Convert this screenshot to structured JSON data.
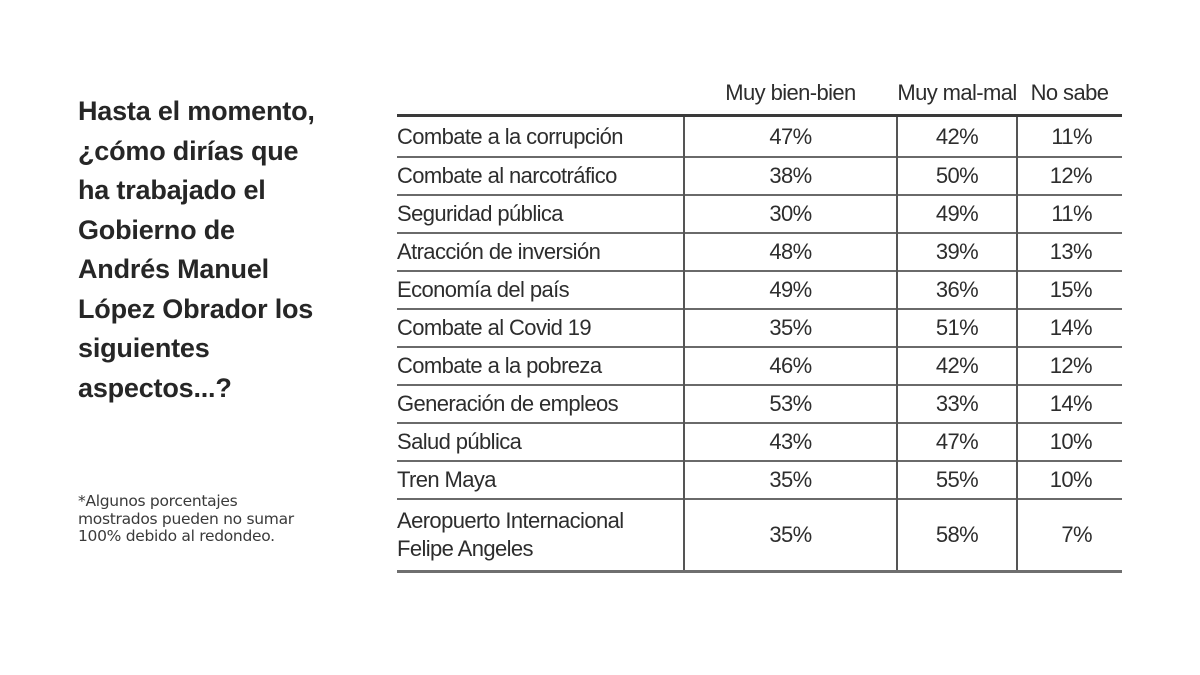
{
  "question": "Hasta el momento, ¿cómo dirías que ha trabajado el Gobierno de Andrés Manuel López Obrador los siguientes aspectos...?",
  "question_lines": [
    "Hasta el momento,",
    "¿cómo dirías que",
    "ha trabajado el",
    "Gobierno de",
    "Andrés Manuel",
    "López Obrador los",
    "siguientes",
    "aspectos...?"
  ],
  "footnote": "*Algunos porcentajes mostrados pueden no sumar 100% debido al redondeo.",
  "table": {
    "headers": [
      "",
      "Muy bien-bien",
      "Muy mal-mal",
      "No sabe"
    ],
    "rows": [
      {
        "aspect": "Combate a la corrupción",
        "bien": "47%",
        "mal": "42%",
        "nosabe": "11%"
      },
      {
        "aspect": "Combate al narcotráfico",
        "bien": "38%",
        "mal": "50%",
        "nosabe": "12%"
      },
      {
        "aspect": "Seguridad pública",
        "bien": "30%",
        "mal": "49%",
        "nosabe": "11%"
      },
      {
        "aspect": "Atracción de inversión",
        "bien": "48%",
        "mal": "39%",
        "nosabe": "13%"
      },
      {
        "aspect": "Economía del país",
        "bien": "49%",
        "mal": "36%",
        "nosabe": "15%"
      },
      {
        "aspect": "Combate al Covid 19",
        "bien": "35%",
        "mal": "51%",
        "nosabe": "14%"
      },
      {
        "aspect": "Combate a la pobreza",
        "bien": "46%",
        "mal": "42%",
        "nosabe": "12%"
      },
      {
        "aspect": "Generación de empleos",
        "bien": "53%",
        "mal": "33%",
        "nosabe": "14%"
      },
      {
        "aspect": "Salud pública",
        "bien": "43%",
        "mal": "47%",
        "nosabe": "10%"
      },
      {
        "aspect": "Tren Maya",
        "bien": "35%",
        "mal": "55%",
        "nosabe": "10%"
      },
      {
        "aspect_line1": "Aeropuerto Internacional",
        "aspect_line2": "Felipe Angeles",
        "aspect": "Aeropuerto Internacional Felipe Angeles",
        "bien": "35%",
        "mal": "58%",
        "nosabe": "7%"
      }
    ]
  },
  "chart_data": {
    "type": "table",
    "title": "Hasta el momento, ¿cómo dirías que ha trabajado el Gobierno de Andrés Manuel López Obrador los siguientes aspectos...?",
    "note": "*Algunos porcentajes mostrados pueden no sumar 100% debido al redondeo.",
    "categories": [
      "Combate a la corrupción",
      "Combate al narcotráfico",
      "Seguridad pública",
      "Atracción de inversión",
      "Economía del país",
      "Combate al Covid 19",
      "Combate a la pobreza",
      "Generación de empleos",
      "Salud pública",
      "Tren Maya",
      "Aeropuerto Internacional Felipe Angeles"
    ],
    "series": [
      {
        "name": "Muy bien-bien",
        "values": [
          47,
          38,
          30,
          48,
          49,
          35,
          46,
          53,
          43,
          35,
          35
        ]
      },
      {
        "name": "Muy mal-mal",
        "values": [
          42,
          50,
          49,
          39,
          36,
          51,
          42,
          33,
          47,
          55,
          58
        ]
      },
      {
        "name": "No sabe",
        "values": [
          11,
          12,
          11,
          13,
          15,
          14,
          12,
          14,
          10,
          10,
          7
        ]
      }
    ],
    "unit": "%"
  }
}
